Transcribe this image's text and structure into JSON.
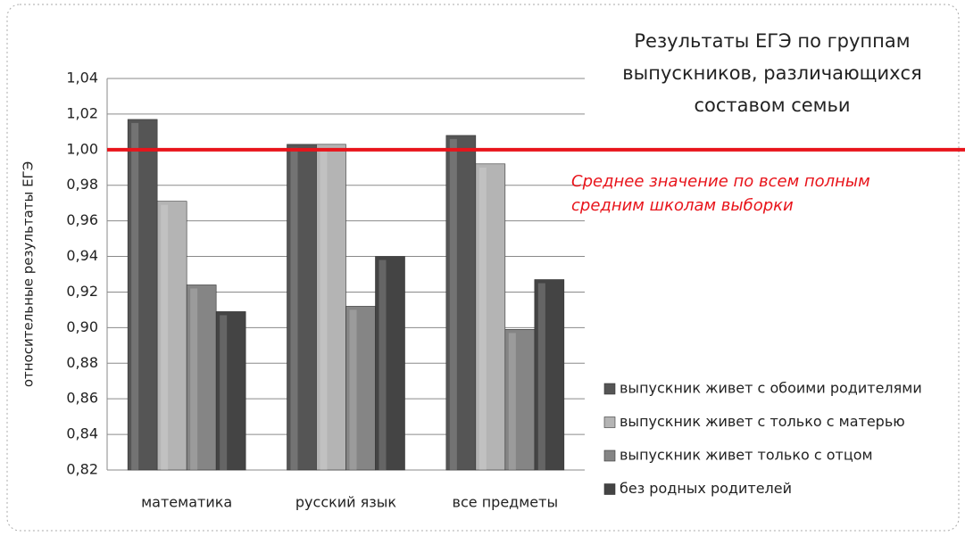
{
  "chart_data": {
    "type": "bar",
    "title": [
      "Результаты ЕГЭ по группам",
      "выпускников, различающихся",
      "составом семьи"
    ],
    "y_label": "относительные результаты ЕГЭ",
    "categories": [
      "математика",
      "русский язык",
      "все предметы"
    ],
    "series": [
      {
        "name": "выпускник живет с обоими родителями",
        "color": "#555555",
        "values": [
          1.017,
          1.003,
          1.008
        ]
      },
      {
        "name": "выпускник живет с только с матерью",
        "color": "#b4b4b4",
        "values": [
          0.971,
          1.003,
          0.992
        ]
      },
      {
        "name": "выпускник живет только с отцом",
        "color": "#858585",
        "values": [
          0.924,
          0.912,
          0.899
        ]
      },
      {
        "name": "без родных родителей",
        "color": "#444444",
        "values": [
          0.909,
          0.94,
          0.927
        ]
      }
    ],
    "ylim": [
      0.82,
      1.04
    ],
    "yticks": [
      {
        "value": 0.82,
        "label": "0,82"
      },
      {
        "value": 0.84,
        "label": "0,84"
      },
      {
        "value": 0.86,
        "label": "0,86"
      },
      {
        "value": 0.88,
        "label": "0,88"
      },
      {
        "value": 0.9,
        "label": "0,90"
      },
      {
        "value": 0.92,
        "label": "0,92"
      },
      {
        "value": 0.94,
        "label": "0,94"
      },
      {
        "value": 0.96,
        "label": "0,96"
      },
      {
        "value": 0.98,
        "label": "0,98"
      },
      {
        "value": 1.0,
        "label": "1,00"
      },
      {
        "value": 1.02,
        "label": "1,02"
      },
      {
        "value": 1.04,
        "label": "1,04"
      }
    ],
    "grid": true,
    "reference_line": {
      "value": 1.0,
      "color": "#e8141b",
      "label": [
        "Среднее значение по всем полным",
        "средним школам выборки"
      ]
    },
    "legend": "right"
  }
}
